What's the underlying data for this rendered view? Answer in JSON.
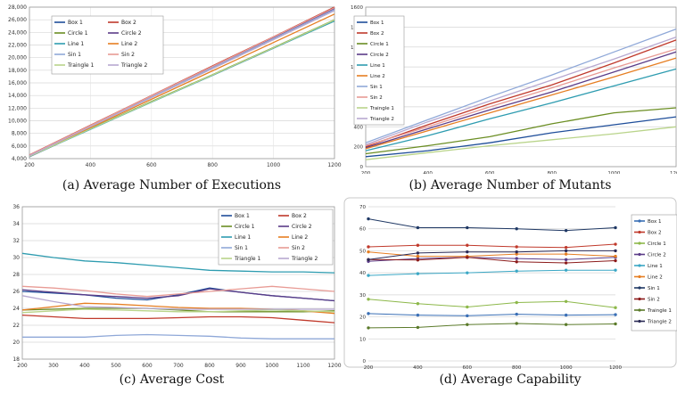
{
  "chart_data": [
    {
      "type": "line",
      "caption": "(a) Average Number of Executions",
      "x": [
        200,
        400,
        600,
        800,
        1000,
        1200
      ],
      "ylim": [
        4000,
        28000
      ],
      "yticks": [
        4000,
        6000,
        8000,
        10000,
        12000,
        14000,
        16000,
        18000,
        20000,
        22000,
        24000,
        26000,
        28000
      ],
      "ytick_labels": [
        "4,000",
        "6,000",
        "8,000",
        "10,000",
        "12,000",
        "14,000",
        "16,000",
        "18,000",
        "20,000",
        "22,000",
        "24,000",
        "26,000",
        "28,000"
      ],
      "grid": true,
      "legend_position": "top-left",
      "series": [
        {
          "name": "Box 1",
          "color": "#1f4e9a",
          "values": [
            4300,
            8700,
            13000,
            17200,
            21500,
            25900
          ]
        },
        {
          "name": "Box 2",
          "color": "#c0392b",
          "values": [
            4600,
            9300,
            14000,
            18700,
            23300,
            28000
          ]
        },
        {
          "name": "Circle 1",
          "color": "#6b8e23",
          "values": [
            4400,
            8750,
            13050,
            17300,
            21600,
            26000
          ]
        },
        {
          "name": "Circle 2",
          "color": "#5b3c88",
          "values": [
            4500,
            9200,
            13900,
            18550,
            23200,
            27800
          ]
        },
        {
          "name": "Line 1",
          "color": "#2e9cb0",
          "values": [
            4350,
            8650,
            12950,
            17200,
            21500,
            25800
          ]
        },
        {
          "name": "Line 2",
          "color": "#e67e22",
          "values": [
            4400,
            8900,
            13400,
            17900,
            22400,
            26900
          ]
        },
        {
          "name": "Sin 1",
          "color": "#8fa8d8",
          "values": [
            4500,
            9150,
            13800,
            18400,
            23000,
            27600
          ]
        },
        {
          "name": "Sin 2",
          "color": "#e89b95",
          "values": [
            4550,
            9250,
            13950,
            18600,
            23250,
            27900
          ]
        },
        {
          "name": "Traingle 1",
          "color": "#b9d48a",
          "values": [
            4350,
            8700,
            13000,
            17250,
            21550,
            25950
          ]
        },
        {
          "name": "Triangle 2",
          "color": "#b7a8d0",
          "values": [
            4450,
            9050,
            13650,
            18250,
            22850,
            27450
          ]
        }
      ]
    },
    {
      "type": "line",
      "caption": "(b) Average Number of Mutants",
      "x": [
        200,
        400,
        600,
        800,
        1000,
        1200
      ],
      "ylim": [
        0,
        1600
      ],
      "yticks": [
        0,
        200,
        400,
        600,
        800,
        1000,
        1200,
        1400,
        1600
      ],
      "ytick_labels": [
        "0",
        "200",
        "400",
        "600",
        "800",
        "1000",
        "1200",
        "1400",
        "1600"
      ],
      "grid": true,
      "legend_position": "top-left",
      "series": [
        {
          "name": "Box 1",
          "color": "#1f4e9a",
          "values": [
            100,
            160,
            240,
            340,
            420,
            500
          ]
        },
        {
          "name": "Box 2",
          "color": "#c0392b",
          "values": [
            200,
            420,
            630,
            820,
            1040,
            1270
          ]
        },
        {
          "name": "Circle 1",
          "color": "#6b8e23",
          "values": [
            130,
            210,
            300,
            430,
            540,
            590
          ]
        },
        {
          "name": "Circle 2",
          "color": "#5b3c88",
          "values": [
            190,
            380,
            570,
            750,
            950,
            1150
          ]
        },
        {
          "name": "Line 1",
          "color": "#2e9cb0",
          "values": [
            160,
            310,
            480,
            640,
            810,
            980
          ]
        },
        {
          "name": "Line 2",
          "color": "#e67e22",
          "values": [
            180,
            360,
            540,
            720,
            900,
            1090
          ]
        },
        {
          "name": "Sin 1",
          "color": "#8fa8d8",
          "values": [
            240,
            470,
            700,
            920,
            1150,
            1380
          ]
        },
        {
          "name": "Sin 2",
          "color": "#e89b95",
          "values": [
            210,
            400,
            600,
            790,
            990,
            1180
          ]
        },
        {
          "name": "Traingle 1",
          "color": "#b9d48a",
          "values": [
            70,
            140,
            210,
            270,
            330,
            400
          ]
        },
        {
          "name": "Triangle 2",
          "color": "#b7a8d0",
          "values": [
            220,
            450,
            660,
            870,
            1080,
            1300
          ]
        }
      ]
    },
    {
      "type": "line",
      "caption": "(c) Average Cost",
      "x": [
        200,
        300,
        400,
        500,
        600,
        700,
        800,
        900,
        1000,
        1100,
        1200
      ],
      "ylim": [
        18,
        36
      ],
      "yticks": [
        18,
        20,
        22,
        24,
        26,
        28,
        30,
        32,
        34,
        36
      ],
      "ytick_labels": [
        "18",
        "20",
        "22",
        "24",
        "26",
        "28",
        "30",
        "32",
        "34",
        "36"
      ],
      "xtick_labels": [
        "200",
        "300",
        "400",
        "500",
        "600",
        "700",
        "800",
        "900",
        "1000",
        "1100",
        "1200"
      ],
      "grid": true,
      "legend_position": "top-right",
      "series": [
        {
          "name": "Box 1",
          "color": "#1f4e9a",
          "values": [
            26.0,
            25.8,
            25.6,
            25.2,
            25.0,
            25.6,
            26.4,
            25.9,
            25.5,
            25.2,
            24.9
          ]
        },
        {
          "name": "Box 2",
          "color": "#c0392b",
          "values": [
            23.2,
            23.0,
            22.8,
            22.8,
            22.8,
            22.9,
            23.0,
            23.0,
            22.9,
            22.6,
            22.3
          ]
        },
        {
          "name": "Circle 1",
          "color": "#6b8e23",
          "values": [
            23.8,
            23.9,
            24.0,
            24.0,
            24.0,
            23.8,
            23.6,
            23.6,
            23.6,
            23.6,
            23.7
          ]
        },
        {
          "name": "Circle 2",
          "color": "#5b3c88",
          "values": [
            26.2,
            25.9,
            25.6,
            25.4,
            25.2,
            25.5,
            26.3,
            25.9,
            25.5,
            25.2,
            24.9
          ]
        },
        {
          "name": "Line 1",
          "color": "#2e9cb0",
          "values": [
            30.5,
            30.0,
            29.6,
            29.4,
            29.1,
            28.8,
            28.5,
            28.4,
            28.3,
            28.3,
            28.2
          ]
        },
        {
          "name": "Line 2",
          "color": "#e67e22",
          "values": [
            23.8,
            24.2,
            24.6,
            24.5,
            24.3,
            24.1,
            24.0,
            24.0,
            23.9,
            23.7,
            23.4
          ]
        },
        {
          "name": "Sin 1",
          "color": "#8fa8d8",
          "values": [
            20.6,
            20.6,
            20.6,
            20.8,
            20.9,
            20.8,
            20.7,
            20.5,
            20.4,
            20.4,
            20.4
          ]
        },
        {
          "name": "Sin 2",
          "color": "#e89b95",
          "values": [
            26.6,
            26.4,
            26.1,
            25.7,
            25.4,
            25.7,
            26.0,
            26.3,
            26.6,
            26.3,
            26.0
          ]
        },
        {
          "name": "Triangle 1",
          "color": "#b9d48a",
          "values": [
            23.5,
            23.7,
            23.9,
            23.8,
            23.7,
            23.6,
            23.6,
            23.7,
            23.8,
            23.7,
            23.6
          ]
        },
        {
          "name": "Triangle 2",
          "color": "#b7a8d0",
          "values": [
            25.5,
            24.8,
            24.2,
            24.1,
            24.0,
            23.9,
            23.9,
            23.9,
            23.9,
            23.9,
            23.9
          ]
        }
      ]
    },
    {
      "type": "line",
      "caption": "(d) Average Capability",
      "x": [
        200,
        400,
        600,
        800,
        1000,
        1200
      ],
      "ylim": [
        0,
        70
      ],
      "yticks": [
        0,
        10,
        20,
        30,
        40,
        50,
        60,
        70
      ],
      "ytick_labels": [
        "0",
        "10",
        "20",
        "30",
        "40",
        "50",
        "60",
        "70"
      ],
      "grid": true,
      "markers": true,
      "legend_position": "right",
      "series": [
        {
          "name": "Box 1",
          "color": "#3a6fb5",
          "values": [
            21.5,
            20.8,
            20.5,
            21.2,
            20.8,
            21.0
          ]
        },
        {
          "name": "Box 2",
          "color": "#c0392b",
          "values": [
            51.8,
            52.5,
            52.5,
            51.8,
            51.5,
            53.0
          ]
        },
        {
          "name": "Circle 1",
          "color": "#8db84a",
          "values": [
            28.0,
            26.0,
            24.5,
            26.5,
            27.0,
            24.2
          ]
        },
        {
          "name": "Circle 2",
          "color": "#5b3c88",
          "values": [
            45.2,
            46.5,
            47.0,
            46.5,
            46.0,
            47.0
          ]
        },
        {
          "name": "Line 1",
          "color": "#3aa7c5",
          "values": [
            38.8,
            39.6,
            40.0,
            40.8,
            41.2,
            41.2
          ]
        },
        {
          "name": "Line 2",
          "color": "#e67e22",
          "values": [
            49.5,
            47.5,
            47.5,
            48.5,
            48.5,
            47.5
          ]
        },
        {
          "name": "Sin 1",
          "color": "#1f3864",
          "values": [
            64.5,
            60.5,
            60.5,
            60.0,
            59.2,
            60.5
          ]
        },
        {
          "name": "Sin 2",
          "color": "#8b1a1a",
          "values": [
            46.0,
            45.8,
            47.0,
            45.0,
            44.5,
            45.5
          ]
        },
        {
          "name": "Traingle 1",
          "color": "#5b7a2a",
          "values": [
            15.0,
            15.2,
            16.5,
            17.0,
            16.5,
            16.8
          ]
        },
        {
          "name": "Triangle 2",
          "color": "#2a2a55",
          "values": [
            46.0,
            49.0,
            49.5,
            49.5,
            50.0,
            50.0
          ]
        }
      ]
    }
  ]
}
